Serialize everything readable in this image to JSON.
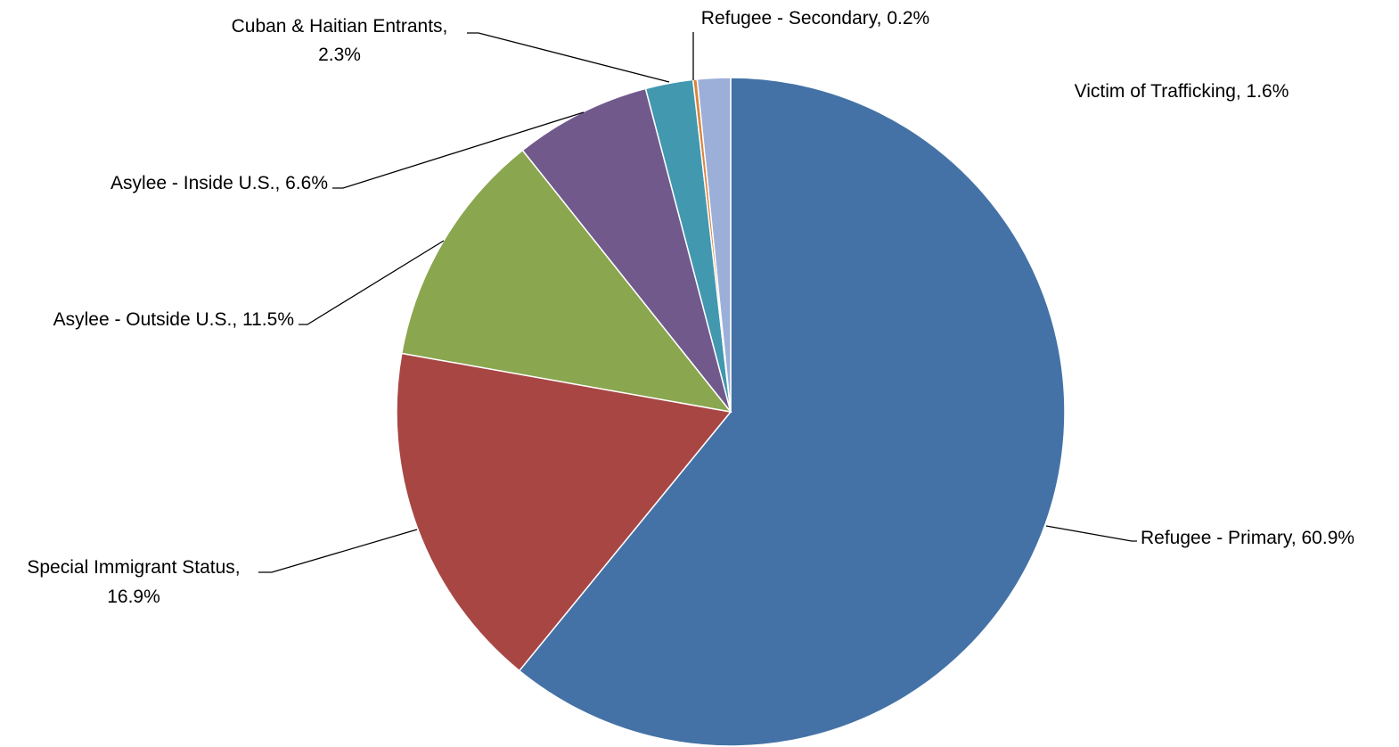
{
  "chart_data": {
    "type": "pie",
    "title": "",
    "start_angle_deg": 0,
    "direction": "clockwise",
    "slices": [
      {
        "name": "Refugee - Primary",
        "value": 60.9,
        "label": "Refugee - Primary, 60.9%",
        "color": "#4472A6"
      },
      {
        "name": "Special Immigrant Status",
        "value": 16.9,
        "label_lines": [
          "Special Immigrant Status,",
          "16.9%"
        ],
        "color": "#A84644"
      },
      {
        "name": "Asylee - Outside U.S.",
        "value": 11.5,
        "label": "Asylee - Outside U.S., 11.5%",
        "color": "#8AA64E"
      },
      {
        "name": "Asylee - Inside U.S.",
        "value": 6.6,
        "label": "Asylee -  Inside U.S., 6.6%",
        "color": "#71598C"
      },
      {
        "name": "Cuban & Haitian Entrants",
        "value": 2.3,
        "label_lines": [
          "Cuban & Haitian Entrants,",
          "2.3%"
        ],
        "color": "#4198AF"
      },
      {
        "name": "Refugee - Secondary",
        "value": 0.2,
        "label": "Refugee - Secondary, 0.2%",
        "color": "#DB843D"
      },
      {
        "name": "Victim of Trafficking",
        "value": 1.6,
        "label": "Victim of Trafficking, 1.6%",
        "color": "#9BAFD8"
      }
    ]
  }
}
